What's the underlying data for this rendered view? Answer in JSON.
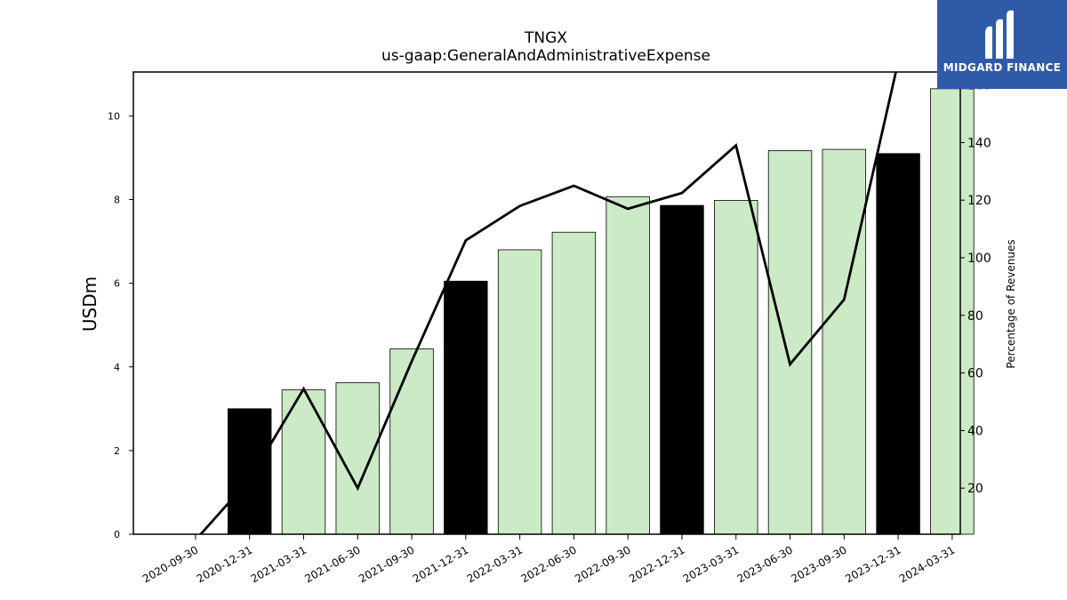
{
  "chart_data": {
    "type": "bar",
    "title": "TNGX",
    "subtitle": "us-gaap:GeneralAndAdministrativeExpense",
    "ylabel": "USDm",
    "y2label": "Percentage of Revenues",
    "ylim": [
      0,
      11.05
    ],
    "y2lim": [
      4,
      164.5
    ],
    "yticks": [
      "0",
      "2",
      "4",
      "6",
      "8",
      "10"
    ],
    "y2ticks": [
      "20",
      "40",
      "60",
      "80",
      "100",
      "120",
      "140",
      "160"
    ],
    "categories": [
      "2020-09-30",
      "2020-12-31",
      "2021-03-31",
      "2021-06-30",
      "2021-09-30",
      "2021-12-31",
      "2022-03-31",
      "2022-06-30",
      "2022-09-30",
      "2022-12-31",
      "2023-03-31",
      "2023-06-30",
      "2023-09-30",
      "2023-12-31",
      "2024-03-31"
    ],
    "series": [
      {
        "kind": "bar",
        "axis": "left",
        "values": [
          0,
          3.0,
          3.45,
          3.62,
          4.43,
          6.05,
          6.8,
          7.22,
          8.07,
          7.86,
          7.98,
          9.17,
          9.2,
          9.1,
          10.65
        ],
        "highlight": [
          false,
          true,
          false,
          false,
          false,
          true,
          false,
          false,
          false,
          true,
          false,
          false,
          false,
          true,
          false
        ]
      },
      {
        "kind": "line",
        "axis": "right",
        "values": [
          2,
          23,
          54.5,
          20,
          64,
          106,
          118,
          125,
          117,
          122.5,
          139,
          63,
          85.5,
          168,
          170
        ]
      }
    ],
    "colors": {
      "bar": "#cdeac6",
      "highlight": "#000000",
      "line": "#000000"
    },
    "grid": false,
    "legend": "none"
  },
  "logo": {
    "text": "MIDGARD FINANCE",
    "background": "#2f5aa8"
  }
}
